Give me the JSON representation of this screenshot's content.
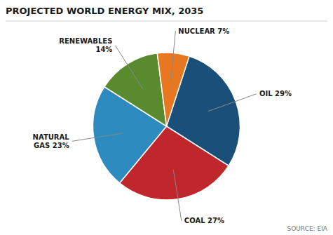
{
  "chart_data": {
    "type": "pie",
    "title": "PROJECTED WORLD ENERGY MIX, 2035",
    "source": "SOURCE: EIA",
    "categories": [
      "OIL 29%",
      "COAL 27%",
      "NATURAL\nGAS 23%",
      "RENEWABLES\n14%",
      "NUCLEAR 7%"
    ],
    "values": [
      29,
      27,
      23,
      14,
      7
    ],
    "colors": [
      "#1a4f7a",
      "#c0272d",
      "#2e8bc0",
      "#5a8a2e",
      "#e87722"
    ]
  }
}
